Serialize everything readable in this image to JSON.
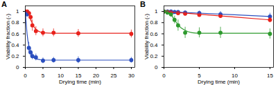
{
  "chart_data": [
    {
      "type": "scatter",
      "title": "A",
      "x_label": "Drying time (min)",
      "y_label": "Viability fraction (-)",
      "xlim": [
        0,
        31
      ],
      "xticks": [
        0,
        5,
        10,
        15,
        20,
        25,
        30
      ],
      "ylim": [
        0,
        1.1
      ],
      "yticks": [
        0,
        0.2,
        0.4,
        0.6,
        0.8,
        1
      ],
      "series": [
        {
          "color": "#e8221c",
          "marker": "circle",
          "x": [
            0,
            0.5,
            1,
            1.5,
            2,
            3,
            5,
            8,
            15,
            30
          ],
          "values": [
            1,
            1,
            0.97,
            0.9,
            0.75,
            0.65,
            0.62,
            0.62,
            0.61,
            0.6
          ],
          "errors": [
            0.03,
            0.03,
            0.05,
            0.08,
            0.1,
            0.08,
            0.07,
            0.07,
            0.07,
            0.07
          ]
        },
        {
          "color": "#2b4fbf",
          "marker": "circle",
          "x": [
            0,
            0.5,
            1,
            1.5,
            2,
            3,
            5,
            8,
            15,
            30
          ],
          "values": [
            0.97,
            0.95,
            0.35,
            0.27,
            0.2,
            0.18,
            0.12,
            0.13,
            0.13,
            0.13
          ],
          "errors": [
            0.04,
            0.05,
            0.1,
            0.08,
            0.06,
            0.06,
            0.05,
            0.05,
            0.06,
            0.05
          ]
        },
        {
          "type": "line",
          "color": "#e8221c",
          "line_style": "solid",
          "x": [
            0,
            0.5,
            1,
            1.5,
            2,
            3,
            4,
            5,
            8,
            15,
            30
          ],
          "values": [
            1,
            0.99,
            0.95,
            0.87,
            0.78,
            0.68,
            0.64,
            0.62,
            0.61,
            0.61,
            0.61
          ]
        },
        {
          "type": "line",
          "color": "#2b4fbf",
          "line_style": "solid",
          "x": [
            0,
            0.5,
            1,
            1.5,
            2,
            3,
            4,
            5,
            8,
            15,
            30
          ],
          "values": [
            1,
            0.6,
            0.38,
            0.26,
            0.2,
            0.15,
            0.14,
            0.13,
            0.13,
            0.13,
            0.13
          ]
        }
      ]
    },
    {
      "type": "scatter",
      "title": "B",
      "x_label": "Drying time (min)",
      "y_label": "Viability fraction (-)",
      "xlim": [
        0,
        15.5
      ],
      "xticks": [
        0,
        5,
        10,
        15
      ],
      "ylim": [
        0,
        1.1
      ],
      "yticks": [
        0,
        0.2,
        0.4,
        0.6,
        0.8,
        1
      ],
      "series": [
        {
          "color": "#2b4fbf",
          "marker": "circle",
          "x": [
            0,
            0.5,
            1,
            1.5,
            2,
            3,
            5,
            8,
            15
          ],
          "values": [
            1,
            1,
            1,
            0.99,
            0.99,
            0.98,
            0.97,
            0.95,
            0.91
          ],
          "errors": [
            0.03,
            0.03,
            0.03,
            0.03,
            0.03,
            0.03,
            0.04,
            0.05,
            0.06
          ]
        },
        {
          "color": "#e8221c",
          "marker": "circle",
          "x": [
            0,
            0.5,
            1,
            2,
            3,
            5,
            8,
            15
          ],
          "values": [
            1,
            0.99,
            0.98,
            0.97,
            0.96,
            0.94,
            0.92,
            0.85
          ],
          "errors": [
            0.03,
            0.03,
            0.03,
            0.03,
            0.04,
            0.04,
            0.04,
            0.05
          ]
        },
        {
          "color": "#2e9a2e",
          "marker": "circle",
          "x": [
            0,
            0.5,
            1,
            1.5,
            2,
            3,
            5,
            8,
            15
          ],
          "values": [
            1,
            0.98,
            0.95,
            0.85,
            0.75,
            0.62,
            0.62,
            0.62,
            0.6
          ],
          "errors": [
            0.03,
            0.04,
            0.05,
            0.07,
            0.1,
            0.1,
            0.09,
            0.1,
            0.09
          ]
        },
        {
          "type": "line",
          "color": "#2b4fbf",
          "line_style": "solid",
          "x": [
            0,
            5,
            10,
            15
          ],
          "values": [
            1,
            0.97,
            0.94,
            0.91
          ]
        },
        {
          "type": "line",
          "color": "#e8221c",
          "line_style": "solid",
          "x": [
            0,
            5,
            10,
            15
          ],
          "values": [
            1,
            0.95,
            0.9,
            0.85
          ]
        },
        {
          "type": "line",
          "color": "#2e9a2e",
          "line_style": "solid",
          "x": [
            0,
            0.5,
            1,
            1.5,
            2,
            3,
            4,
            5,
            8,
            15
          ],
          "values": [
            1,
            0.99,
            0.94,
            0.85,
            0.76,
            0.66,
            0.62,
            0.61,
            0.61,
            0.61
          ]
        }
      ]
    }
  ]
}
